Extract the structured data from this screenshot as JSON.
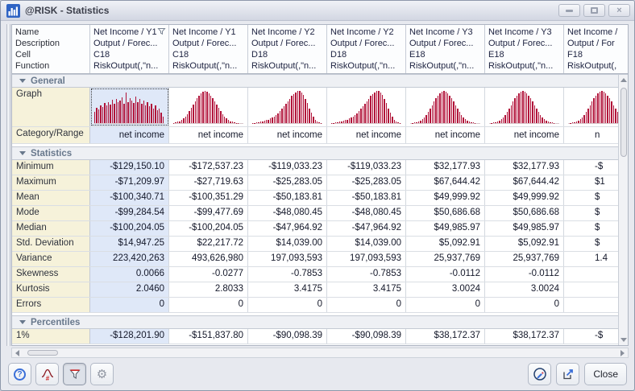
{
  "window": {
    "title": "@RISK - Statistics"
  },
  "icons": {
    "app": "histogram-icon",
    "window_controls": [
      "minimize-icon",
      "maximize-icon",
      "close-icon"
    ],
    "footer_left": [
      "help-icon",
      "bell-curve-format-icon",
      "filter-icon",
      "gear-icon"
    ],
    "footer_right": [
      "edit-pen-circle-icon",
      "export-icon"
    ]
  },
  "colors": {
    "histogram": "#b11239",
    "selected_column_bg": "#dfe8f8",
    "label_column_bg": "#f6f2da",
    "section_text": "#68788c",
    "accent_blue": "#3a6fd8"
  },
  "header": {
    "labels": [
      "Name",
      "Description",
      "Cell",
      "Function"
    ]
  },
  "columns": [
    {
      "name": "Net Income / Y1",
      "description": "Output / Forec...",
      "cell": "C18",
      "function": "RiskOutput(,\"n...",
      "category": "net income",
      "filtered": true,
      "selected": true,
      "bars": [
        34,
        48,
        42,
        56,
        50,
        62,
        54,
        66,
        58,
        72,
        60,
        76,
        64,
        70,
        80,
        60,
        94,
        66,
        78,
        70,
        62,
        82,
        66,
        74,
        60,
        70,
        56,
        64,
        52,
        60,
        46,
        54,
        40,
        46,
        32,
        20
      ]
    },
    {
      "name": "Net Income / Y1",
      "description": "Output / Forec...",
      "cell": "C18",
      "function": "RiskOutput(,\"n...",
      "category": "net income",
      "bars": [
        1,
        2,
        4,
        6,
        10,
        14,
        20,
        28,
        37,
        47,
        58,
        68,
        78,
        86,
        93,
        98,
        100,
        98,
        93,
        86,
        78,
        68,
        58,
        47,
        37,
        28,
        20,
        14,
        10,
        6,
        4,
        2,
        1,
        1,
        0,
        0
      ]
    },
    {
      "name": "Net Income / Y2",
      "description": "Output / Forec...",
      "cell": "D18",
      "function": "RiskOutput(,\"n...",
      "category": "net income",
      "bars": [
        1,
        1,
        2,
        3,
        4,
        5,
        7,
        9,
        11,
        14,
        17,
        21,
        26,
        31,
        37,
        44,
        52,
        60,
        68,
        76,
        84,
        90,
        95,
        99,
        100,
        96,
        88,
        76,
        62,
        46,
        32,
        20,
        11,
        5,
        2,
        1
      ]
    },
    {
      "name": "Net Income / Y2",
      "description": "Output / Forec...",
      "cell": "D18",
      "function": "RiskOutput(,\"n...",
      "category": "net income",
      "bars": [
        1,
        1,
        2,
        3,
        4,
        5,
        7,
        9,
        11,
        14,
        17,
        21,
        26,
        31,
        37,
        44,
        52,
        60,
        68,
        76,
        84,
        90,
        95,
        99,
        100,
        96,
        88,
        76,
        62,
        46,
        32,
        20,
        11,
        5,
        2,
        1
      ]
    },
    {
      "name": "Net Income / Y3",
      "description": "Output / Forec...",
      "cell": "E18",
      "function": "RiskOutput(,\"n...",
      "category": "net income",
      "bars": [
        0,
        1,
        2,
        3,
        5,
        8,
        12,
        18,
        26,
        35,
        45,
        56,
        67,
        77,
        86,
        93,
        98,
        100,
        98,
        93,
        86,
        77,
        67,
        56,
        45,
        35,
        26,
        18,
        12,
        8,
        5,
        3,
        2,
        1,
        0,
        0
      ]
    },
    {
      "name": "Net Income / Y3",
      "description": "Output / Forec...",
      "cell": "E18",
      "function": "RiskOutput(,\"n...",
      "category": "net income",
      "bars": [
        0,
        1,
        2,
        3,
        5,
        8,
        12,
        18,
        26,
        35,
        45,
        56,
        67,
        77,
        86,
        93,
        98,
        100,
        98,
        93,
        86,
        77,
        67,
        56,
        45,
        35,
        26,
        18,
        12,
        8,
        5,
        3,
        2,
        1,
        0,
        0
      ]
    },
    {
      "name": "Net Income /",
      "description": "Output / For",
      "cell": "F18",
      "function": "RiskOutput(,",
      "category": "n",
      "clipped": true,
      "bars": [
        0,
        1,
        2,
        3,
        5,
        8,
        12,
        18,
        26,
        35,
        45,
        56,
        67,
        77,
        86,
        93,
        98,
        100,
        98,
        93,
        86,
        77,
        67,
        56,
        45,
        35,
        26,
        18,
        12,
        8,
        5,
        3,
        2,
        1,
        0,
        0
      ]
    }
  ],
  "sections": {
    "general": "General",
    "statistics": "Statistics",
    "percentiles": "Percentiles"
  },
  "row_labels": {
    "graph": "Graph",
    "category": "Category/Range"
  },
  "statistics_rows": [
    {
      "label": "Minimum",
      "values": [
        "-$129,150.10",
        "-$172,537.23",
        "-$119,033.23",
        "-$119,033.23",
        "$32,177.93",
        "$32,177.93",
        "-$"
      ]
    },
    {
      "label": "Maximum",
      "values": [
        "-$71,209.97",
        "-$27,719.63",
        "-$25,283.05",
        "-$25,283.05",
        "$67,644.42",
        "$67,644.42",
        "$1"
      ]
    },
    {
      "label": "Mean",
      "values": [
        "-$100,340.71",
        "-$100,351.29",
        "-$50,183.81",
        "-$50,183.81",
        "$49,999.92",
        "$49,999.92",
        "$"
      ]
    },
    {
      "label": "Mode",
      "values": [
        "-$99,284.54",
        "-$99,477.69",
        "-$48,080.45",
        "-$48,080.45",
        "$50,686.68",
        "$50,686.68",
        "$"
      ]
    },
    {
      "label": "Median",
      "values": [
        "-$100,204.05",
        "-$100,204.05",
        "-$47,964.92",
        "-$47,964.92",
        "$49,985.97",
        "$49,985.97",
        "$"
      ]
    },
    {
      "label": "Std. Deviation",
      "values": [
        "$14,947.25",
        "$22,217.72",
        "$14,039.00",
        "$14,039.00",
        "$5,092.91",
        "$5,092.91",
        "$"
      ]
    },
    {
      "label": "Variance",
      "values": [
        "223,420,263",
        "493,626,980",
        "197,093,593",
        "197,093,593",
        "25,937,769",
        "25,937,769",
        "1.4"
      ]
    },
    {
      "label": "Skewness",
      "values": [
        "0.0066",
        "-0.0277",
        "-0.7853",
        "-0.7853",
        "-0.0112",
        "-0.0112",
        ""
      ]
    },
    {
      "label": "Kurtosis",
      "values": [
        "2.0460",
        "2.8033",
        "3.4175",
        "3.4175",
        "3.0024",
        "3.0024",
        ""
      ]
    },
    {
      "label": "Errors",
      "values": [
        "0",
        "0",
        "0",
        "0",
        "0",
        "0",
        ""
      ]
    }
  ],
  "percentile_rows": [
    {
      "label": "1%",
      "values": [
        "-$128,201.90",
        "-$151,837.80",
        "-$90,098.39",
        "-$90,098.39",
        "$38,172.37",
        "$38,172.37",
        "-$"
      ]
    }
  ],
  "footer": {
    "close": "Close"
  }
}
